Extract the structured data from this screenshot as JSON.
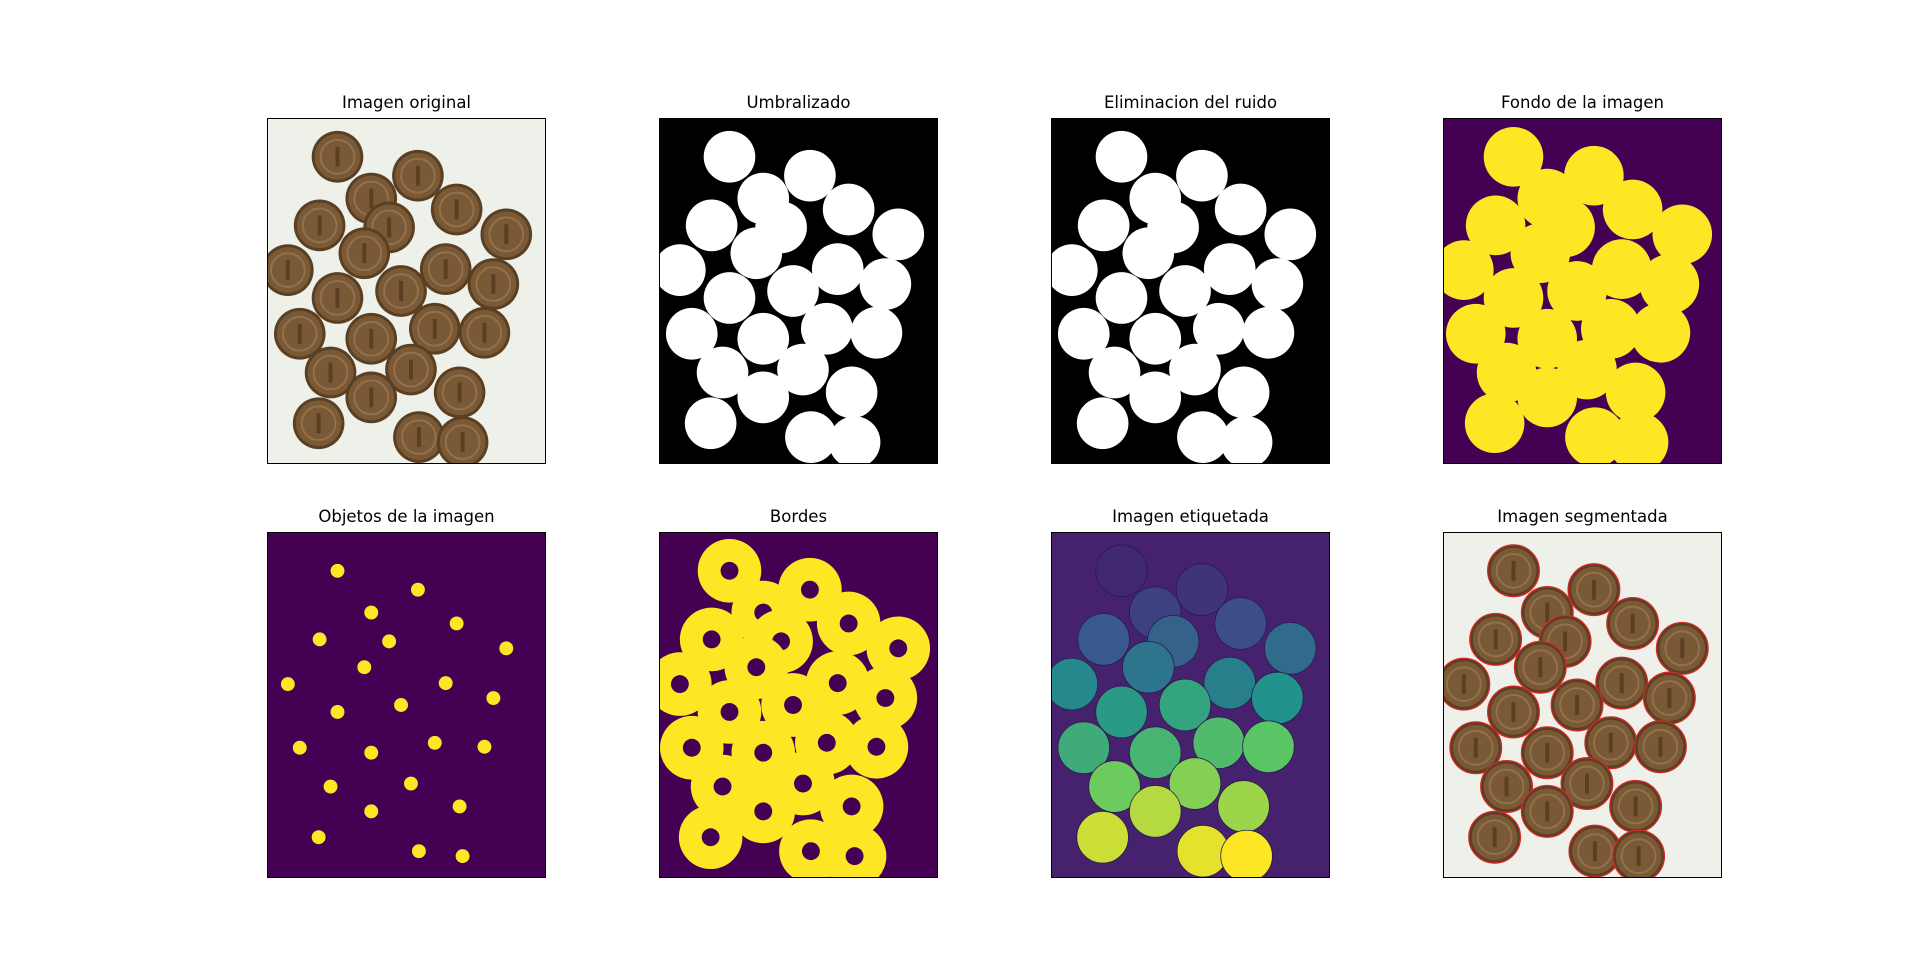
{
  "figure": {
    "panels": [
      {
        "key": "original",
        "title": "Imagen original",
        "style": "photo",
        "background": "#eef0ea"
      },
      {
        "key": "threshold",
        "title": "Umbralizado",
        "style": "binary",
        "background": "#000000",
        "foreground": "#ffffff"
      },
      {
        "key": "denoise",
        "title": "Eliminacion del ruido",
        "style": "binary",
        "background": "#000000",
        "foreground": "#ffffff"
      },
      {
        "key": "background",
        "title": "Fondo de la imagen",
        "style": "dilated",
        "background": "#440154",
        "foreground": "#fde725"
      },
      {
        "key": "objects",
        "title": "Objetos de la imagen",
        "style": "markers",
        "background": "#440154",
        "foreground": "#fde725"
      },
      {
        "key": "edges",
        "title": "Bordes",
        "style": "rings",
        "background": "#440154",
        "foreground": "#fde725"
      },
      {
        "key": "labels",
        "title": "Imagen etiquetada",
        "style": "labels",
        "background": "#46226e"
      },
      {
        "key": "segmented",
        "title": "Imagen segmentada",
        "style": "segmented",
        "background": "#eef0ea",
        "contour": "#d62728"
      }
    ],
    "coin_colors": {
      "face": "#7a5a36",
      "rim": "#5a3f22",
      "highlight": "#93714a"
    },
    "label_colormap": "viridis"
  }
}
